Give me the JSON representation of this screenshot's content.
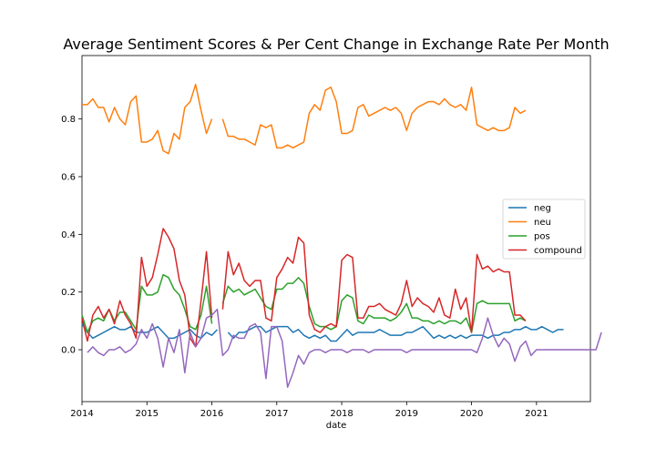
{
  "chart_data": {
    "type": "line",
    "title": "Average Sentiment Scores & Per Cent Change in Exchange Rate Per Month",
    "xlabel": "date",
    "ylabel": "",
    "xlim": [
      2014.0,
      2021.83
    ],
    "ylim": [
      -0.18,
      1.02
    ],
    "x_ticks": [
      2014,
      2015,
      2016,
      2017,
      2018,
      2019,
      2020,
      2021
    ],
    "x_tick_labels": [
      "2014",
      "2015",
      "2016",
      "2017",
      "2018",
      "2019",
      "2020",
      "2021"
    ],
    "y_ticks": [
      0.0,
      0.2,
      0.4,
      0.6,
      0.8
    ],
    "y_tick_labels": [
      "0.0",
      "0.2",
      "0.4",
      "0.6",
      "0.8"
    ],
    "legend": {
      "placement": "center-right",
      "entries": [
        "neg",
        "neu",
        "pos",
        "compound"
      ]
    },
    "series": [
      {
        "name": "neg",
        "color": "#1f77b4",
        "start": 2014.0,
        "step": 0.08333,
        "values": [
          0.09,
          0.06,
          0.04,
          0.05,
          0.06,
          0.07,
          0.08,
          0.07,
          0.07,
          0.08,
          0.06,
          0.06,
          0.06,
          0.07,
          0.08,
          0.06,
          0.04,
          0.04,
          0.05,
          0.06,
          0.07,
          0.05,
          0.04,
          0.06,
          0.05,
          0.07,
          null,
          0.06,
          0.04,
          0.06,
          0.06,
          0.07,
          0.08,
          0.08,
          0.06,
          0.07,
          0.08,
          0.08,
          0.08,
          0.06,
          0.07,
          0.05,
          0.04,
          0.05,
          0.04,
          0.05,
          0.03,
          0.03,
          0.05,
          0.07,
          0.05,
          0.06,
          0.06,
          0.06,
          0.06,
          0.07,
          0.06,
          0.05,
          0.05,
          0.05,
          0.06,
          0.06,
          0.07,
          0.08,
          0.06,
          0.04,
          0.05,
          0.04,
          0.05,
          0.04,
          0.05,
          0.04,
          0.05,
          0.05,
          0.05,
          0.04,
          0.05,
          0.05,
          0.06,
          0.06,
          0.07,
          0.07,
          0.08,
          0.07,
          0.07,
          0.08,
          0.07,
          0.06,
          0.07,
          0.07
        ]
      },
      {
        "name": "neu",
        "color": "#ff7f0e",
        "start": 2014.0,
        "step": 0.08333,
        "values": [
          0.85,
          0.85,
          0.87,
          0.84,
          0.84,
          0.79,
          0.84,
          0.8,
          0.78,
          0.86,
          0.88,
          0.72,
          0.72,
          0.73,
          0.76,
          0.69,
          0.68,
          0.75,
          0.73,
          0.84,
          0.86,
          0.92,
          0.83,
          0.75,
          0.8,
          null,
          0.8,
          0.74,
          0.74,
          0.73,
          0.73,
          0.72,
          0.71,
          0.78,
          0.77,
          0.78,
          0.7,
          0.7,
          0.71,
          0.7,
          0.71,
          0.72,
          0.82,
          0.85,
          0.83,
          0.9,
          0.91,
          0.86,
          0.75,
          0.75,
          0.76,
          0.84,
          0.85,
          0.81,
          0.82,
          0.83,
          0.84,
          0.83,
          0.84,
          0.82,
          0.76,
          0.82,
          0.84,
          0.85,
          0.86,
          0.86,
          0.85,
          0.87,
          0.85,
          0.84,
          0.85,
          0.83,
          0.91,
          0.78,
          0.77,
          0.76,
          0.77,
          0.76,
          0.76,
          0.77,
          0.84,
          0.82,
          0.83
        ]
      },
      {
        "name": "pos",
        "color": "#2ca02c",
        "start": 2014.0,
        "step": 0.08333,
        "values": [
          0.12,
          0.06,
          0.1,
          0.11,
          0.1,
          0.14,
          0.1,
          0.13,
          0.13,
          0.1,
          0.07,
          0.22,
          0.19,
          0.19,
          0.2,
          0.26,
          0.25,
          0.21,
          0.19,
          0.14,
          0.08,
          0.07,
          0.12,
          0.22,
          0.09,
          null,
          0.16,
          0.22,
          0.2,
          0.21,
          0.19,
          0.2,
          0.21,
          0.18,
          0.15,
          0.14,
          0.21,
          0.21,
          0.23,
          0.23,
          0.25,
          0.23,
          0.15,
          0.09,
          0.08,
          0.08,
          0.07,
          0.08,
          0.17,
          0.19,
          0.18,
          0.1,
          0.09,
          0.12,
          0.11,
          0.11,
          0.11,
          0.1,
          0.11,
          0.13,
          0.16,
          0.11,
          0.11,
          0.1,
          0.1,
          0.09,
          0.1,
          0.09,
          0.1,
          0.1,
          0.09,
          0.11,
          0.06,
          0.16,
          0.17,
          0.16,
          0.16,
          0.16,
          0.16,
          0.16,
          0.1,
          0.11,
          0.1
        ]
      },
      {
        "name": "compound",
        "color": "#d62728",
        "start": 2014.0,
        "step": 0.08333,
        "values": [
          0.11,
          0.03,
          0.12,
          0.15,
          0.11,
          0.14,
          0.09,
          0.17,
          0.12,
          0.09,
          0.04,
          0.32,
          0.22,
          0.25,
          0.33,
          0.42,
          0.39,
          0.35,
          0.24,
          0.19,
          0.04,
          0.01,
          0.17,
          0.34,
          0.11,
          null,
          0.14,
          0.34,
          0.26,
          0.3,
          0.24,
          0.22,
          0.24,
          0.24,
          0.11,
          0.1,
          0.25,
          0.28,
          0.32,
          0.3,
          0.39,
          0.37,
          0.12,
          0.07,
          0.06,
          0.08,
          0.09,
          0.08,
          0.31,
          0.33,
          0.32,
          0.11,
          0.11,
          0.15,
          0.15,
          0.16,
          0.14,
          0.13,
          0.12,
          0.16,
          0.24,
          0.15,
          0.18,
          0.16,
          0.15,
          0.13,
          0.18,
          0.12,
          0.11,
          0.21,
          0.14,
          0.18,
          0.06,
          0.33,
          0.28,
          0.29,
          0.27,
          0.28,
          0.27,
          0.27,
          0.12,
          0.12,
          0.1
        ]
      },
      {
        "name": "",
        "color": "#9467bd",
        "start": 2014.0,
        "step": 0.08333,
        "values": [
          null,
          -0.01,
          0.01,
          -0.01,
          -0.02,
          0.0,
          0.0,
          0.01,
          -0.01,
          0.0,
          0.02,
          0.07,
          0.04,
          0.09,
          0.04,
          -0.06,
          0.04,
          -0.01,
          0.07,
          -0.08,
          0.06,
          0.01,
          0.04,
          0.11,
          0.12,
          0.14,
          -0.02,
          0.0,
          0.05,
          0.04,
          0.04,
          0.08,
          0.09,
          0.06,
          -0.1,
          0.08,
          0.08,
          0.03,
          -0.13,
          -0.08,
          -0.02,
          -0.05,
          -0.01,
          0.0,
          0.0,
          -0.01,
          0.0,
          0.0,
          0.0,
          -0.01,
          0.0,
          0.0,
          0.0,
          -0.01,
          0.0,
          0.0,
          0.0,
          0.0,
          0.0,
          0.0,
          -0.01,
          0.0,
          0.0,
          0.0,
          0.0,
          0.0,
          0.0,
          0.0,
          0.0,
          0.0,
          0.0,
          0.0,
          0.0,
          -0.01,
          0.04,
          0.11,
          0.05,
          0.01,
          0.04,
          0.02,
          -0.04,
          0.01,
          0.03,
          -0.02,
          0.0,
          0.0,
          0.0,
          0.0,
          0.0,
          0.0,
          0.0,
          0.0,
          0.0,
          0.0,
          0.0,
          0.0,
          0.06
        ]
      }
    ]
  }
}
